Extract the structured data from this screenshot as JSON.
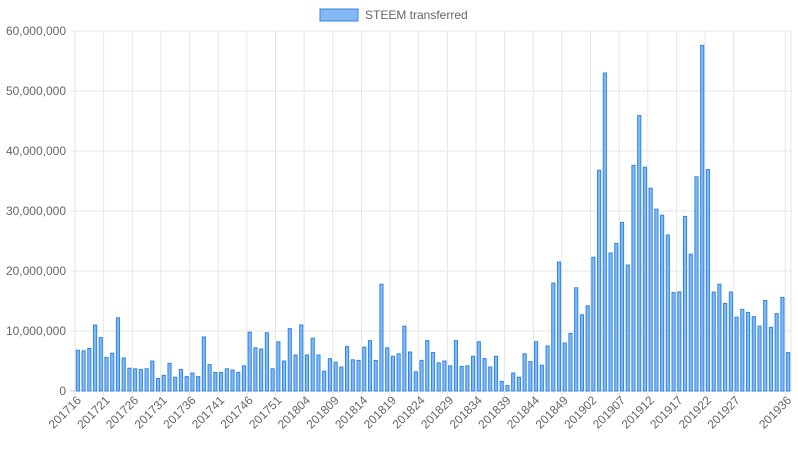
{
  "chart_data": {
    "type": "bar",
    "legend": {
      "position": "top",
      "label": "STEEM transferred"
    },
    "colors": {
      "bar_fill": "#84b9f5",
      "bar_stroke": "#2f86e6",
      "grid": "#e6e6e6",
      "axis_text": "#666666"
    },
    "ylim": [
      0,
      60000000
    ],
    "y_ticks": [
      "0",
      "10,000,000",
      "20,000,000",
      "30,000,000",
      "40,000,000",
      "50,000,000",
      "60,000,000"
    ],
    "x_tick_labels": [
      "201716",
      "201721",
      "201726",
      "201731",
      "201736",
      "201741",
      "201746",
      "201751",
      "201804",
      "201809",
      "201814",
      "201819",
      "201824",
      "201829",
      "201834",
      "201839",
      "201844",
      "201849",
      "201902",
      "201907",
      "201912",
      "201917",
      "201922",
      "201927",
      "201936"
    ],
    "grid": true,
    "categories": [
      "201716",
      "201717",
      "201718",
      "201719",
      "201720",
      "201721",
      "201722",
      "201723",
      "201724",
      "201725",
      "201726",
      "201727",
      "201728",
      "201729",
      "201730",
      "201731",
      "201732",
      "201733",
      "201734",
      "201735",
      "201736",
      "201737",
      "201738",
      "201739",
      "201740",
      "201741",
      "201742",
      "201743",
      "201744",
      "201745",
      "201746",
      "201747",
      "201748",
      "201749",
      "201750",
      "201751",
      "201752",
      "201801",
      "201802",
      "201803",
      "201804",
      "201805",
      "201806",
      "201807",
      "201808",
      "201809",
      "201810",
      "201811",
      "201812",
      "201813",
      "201814",
      "201815",
      "201816",
      "201817",
      "201818",
      "201819",
      "201820",
      "201821",
      "201822",
      "201823",
      "201824",
      "201825",
      "201826",
      "201827",
      "201828",
      "201829",
      "201830",
      "201831",
      "201832",
      "201833",
      "201834",
      "201835",
      "201836",
      "201837",
      "201838",
      "201839",
      "201840",
      "201841",
      "201842",
      "201843",
      "201844",
      "201845",
      "201846",
      "201847",
      "201848",
      "201849",
      "201850",
      "201851",
      "201852",
      "201901",
      "201902",
      "201903",
      "201904",
      "201905",
      "201906",
      "201907",
      "201908",
      "201909",
      "201910",
      "201911",
      "201912",
      "201913",
      "201914",
      "201915",
      "201916",
      "201917",
      "201918",
      "201919",
      "201920",
      "201921",
      "201922",
      "201923",
      "201924",
      "201925",
      "201926",
      "201927",
      "201928",
      "201929",
      "201930",
      "201931",
      "201932",
      "201933",
      "201934",
      "201935",
      "201936"
    ],
    "series": [
      {
        "name": "STEEM transferred",
        "values": [
          6800000,
          6700000,
          7100000,
          11000000,
          8900000,
          5600000,
          6300000,
          12200000,
          5500000,
          3800000,
          3700000,
          3600000,
          3700000,
          5000000,
          2100000,
          2600000,
          4600000,
          2300000,
          3600000,
          2400000,
          3000000,
          2400000,
          9000000,
          4400000,
          3100000,
          3100000,
          3700000,
          3500000,
          3100000,
          4200000,
          9800000,
          7200000,
          7000000,
          9700000,
          3700000,
          8200000,
          5000000,
          10400000,
          6000000,
          11000000,
          6000000,
          8800000,
          6000000,
          3300000,
          5400000,
          4800000,
          4000000,
          7400000,
          5200000,
          5100000,
          7300000,
          8400000,
          5100000,
          17800000,
          7200000,
          5800000,
          6200000,
          10800000,
          6500000,
          3200000,
          5100000,
          8400000,
          6400000,
          4700000,
          5000000,
          4200000,
          8400000,
          4100000,
          4200000,
          5800000,
          8200000,
          5400000,
          4000000,
          5800000,
          1600000,
          900000,
          3000000,
          2300000,
          6200000,
          4900000,
          8200000,
          4300000,
          7500000,
          18000000,
          21500000,
          8000000,
          9600000,
          17200000,
          12700000,
          14200000,
          22300000,
          36800000,
          53000000,
          23000000,
          24600000,
          28100000,
          21000000,
          37600000,
          45900000,
          37300000,
          33800000,
          30300000,
          29300000,
          26000000,
          16400000,
          16500000,
          29100000,
          22800000,
          35700000,
          57600000,
          36900000,
          16500000,
          17800000,
          14600000,
          16500000,
          12300000,
          13600000,
          13100000,
          12400000,
          10800000,
          15100000,
          10600000,
          12900000,
          15600000,
          6400000
        ]
      }
    ]
  }
}
